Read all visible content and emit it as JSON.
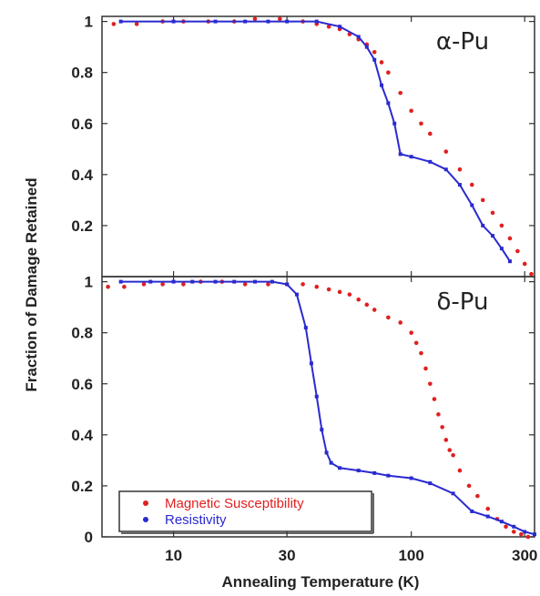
{
  "chart_data": {
    "type": "scatter",
    "ylabel": "Fraction of Damage Retained",
    "xlabel": "Annealing Temperature (K)",
    "x_scale": "log",
    "xlim": [
      5,
      330
    ],
    "x_ticks": [
      10,
      30,
      100,
      300
    ],
    "x_tick_labels": [
      "10",
      "30",
      "100",
      "300"
    ],
    "legend": {
      "placement": "bottom-left",
      "entries": [
        {
          "label": "Magnetic Susceptibility",
          "color": "#e02020"
        },
        {
          "label": "Resistivity",
          "color": "#2a2ad0"
        }
      ]
    },
    "colors": {
      "magnetic": "#e02020",
      "resistivity": "#2a2ad0"
    },
    "panels": [
      {
        "label": "α-Pu",
        "ylim": [
          0,
          1.02
        ],
        "y_ticks": [
          0.2,
          0.4,
          0.6,
          0.8,
          1
        ],
        "y_tick_labels": [
          "0.2",
          "0.4",
          "0.6",
          "0.8",
          "1"
        ],
        "series": [
          {
            "key": "magnetic",
            "style": "dots",
            "x": [
              5.6,
              7,
              9,
              11,
              14,
              18,
              22,
              28,
              35,
              40,
              45,
              50,
              55,
              60,
              65,
              70,
              75,
              80,
              90,
              100,
              110,
              120,
              140,
              160,
              180,
              200,
              220,
              240,
              260,
              280,
              300,
              320
            ],
            "y": [
              0.99,
              0.99,
              1.0,
              1.0,
              1.0,
              1.0,
              1.01,
              1.01,
              1.0,
              0.99,
              0.98,
              0.97,
              0.95,
              0.93,
              0.91,
              0.88,
              0.84,
              0.8,
              0.72,
              0.65,
              0.6,
              0.56,
              0.49,
              0.42,
              0.36,
              0.3,
              0.25,
              0.2,
              0.15,
              0.1,
              0.05,
              0.01
            ]
          },
          {
            "key": "resistivity",
            "style": "line-markers",
            "x": [
              6,
              10,
              15,
              20,
              25,
              30,
              40,
              50,
              60,
              65,
              70,
              75,
              80,
              85,
              90,
              100,
              120,
              140,
              160,
              180,
              200,
              220,
              240,
              260
            ],
            "y": [
              1.0,
              1.0,
              1.0,
              1.0,
              1.0,
              1.0,
              1.0,
              0.98,
              0.94,
              0.9,
              0.85,
              0.75,
              0.68,
              0.6,
              0.48,
              0.47,
              0.45,
              0.42,
              0.36,
              0.28,
              0.2,
              0.16,
              0.11,
              0.06
            ]
          }
        ]
      },
      {
        "label": "δ-Pu",
        "ylim": [
          0,
          1.02
        ],
        "y_ticks": [
          0,
          0.2,
          0.4,
          0.6,
          0.8,
          1
        ],
        "y_tick_labels": [
          "0",
          "0.2",
          "0.4",
          "0.6",
          "0.8",
          "1"
        ],
        "series": [
          {
            "key": "magnetic",
            "style": "dots",
            "x": [
              5.3,
              6.2,
              7.5,
              9,
              11,
              13,
              16,
              20,
              25,
              30,
              35,
              40,
              45,
              50,
              55,
              60,
              65,
              70,
              80,
              90,
              100,
              105,
              110,
              115,
              120,
              125,
              130,
              135,
              140,
              145,
              150,
              160,
              175,
              190,
              210,
              230,
              250,
              270,
              290,
              310
            ],
            "y": [
              0.98,
              0.98,
              0.99,
              0.99,
              0.99,
              1.0,
              1.0,
              0.99,
              0.99,
              0.99,
              0.99,
              0.98,
              0.97,
              0.96,
              0.95,
              0.93,
              0.91,
              0.89,
              0.86,
              0.84,
              0.8,
              0.76,
              0.72,
              0.66,
              0.6,
              0.54,
              0.48,
              0.43,
              0.38,
              0.34,
              0.32,
              0.26,
              0.2,
              0.16,
              0.11,
              0.07,
              0.04,
              0.02,
              0.01,
              0.0
            ]
          },
          {
            "key": "resistivity",
            "style": "line-markers",
            "x": [
              6,
              8,
              10,
              12,
              15,
              18,
              22,
              26,
              30,
              33,
              36,
              38,
              40,
              42,
              44,
              46,
              50,
              60,
              70,
              80,
              100,
              120,
              150,
              180,
              210,
              240,
              270,
              300,
              330
            ],
            "y": [
              1.0,
              1.0,
              1.0,
              1.0,
              1.0,
              1.0,
              1.0,
              1.0,
              0.99,
              0.95,
              0.82,
              0.68,
              0.55,
              0.42,
              0.33,
              0.29,
              0.27,
              0.26,
              0.25,
              0.24,
              0.23,
              0.21,
              0.17,
              0.1,
              0.08,
              0.06,
              0.04,
              0.02,
              0.01
            ]
          }
        ]
      }
    ]
  }
}
